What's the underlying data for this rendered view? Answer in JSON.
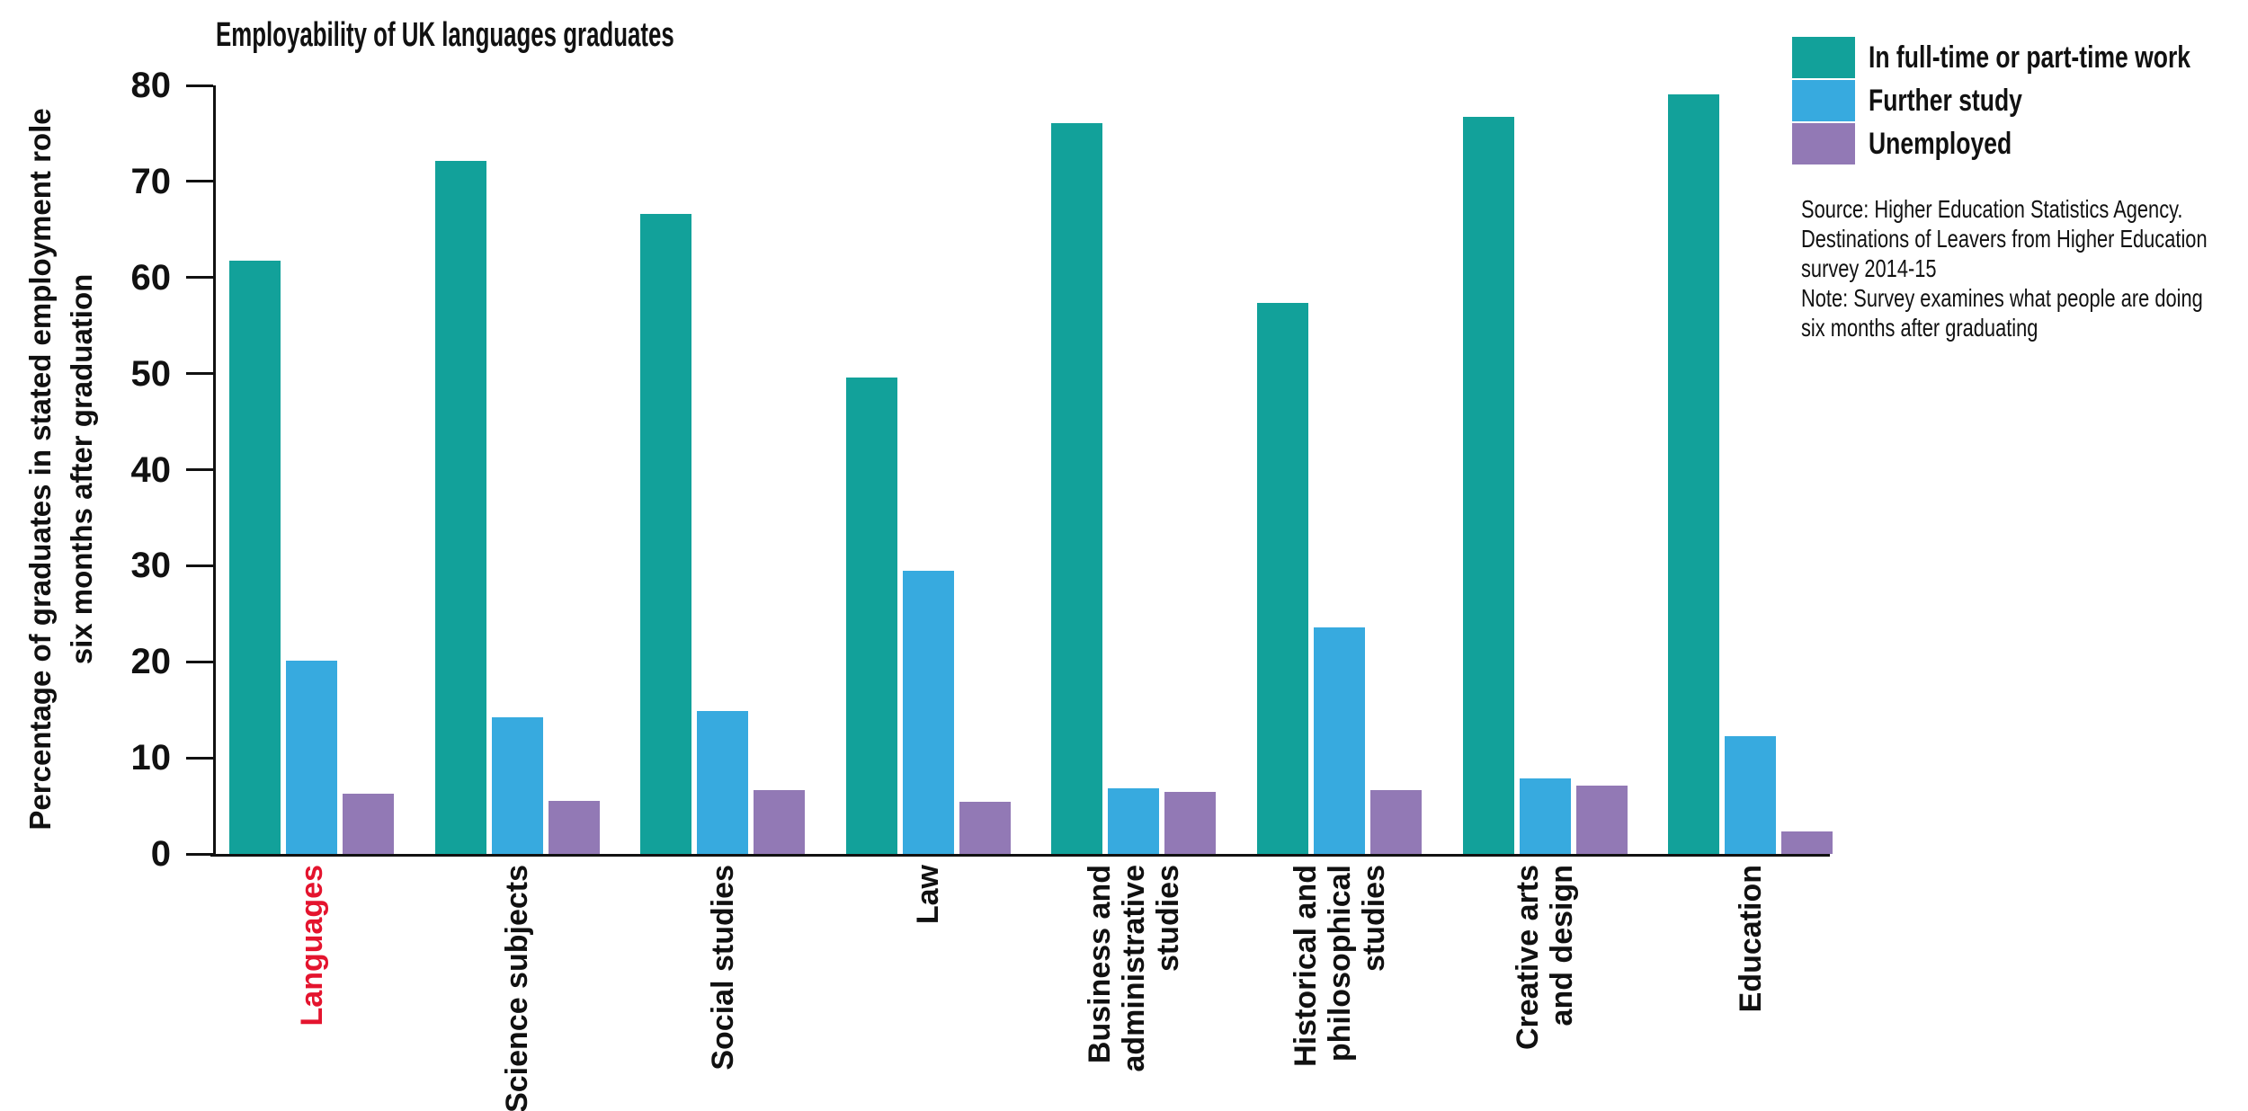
{
  "title": "Employability of UK languages graduates",
  "source_note": {
    "lines": [
      "Source: Higher Education Statistics Agency.",
      "Destinations of Leavers from Higher Education",
      "survey 2014-15",
      "Note: Survey examines what people are doing",
      "six months after graduating"
    ]
  },
  "chart_data": {
    "type": "bar",
    "title": "Employability of UK languages graduates",
    "ylabel_lines": [
      "Percentage of graduates in stated employment role",
      "six months after graduation"
    ],
    "xlabel": "",
    "ylim": [
      0,
      80
    ],
    "ytick_step": 10,
    "grid": false,
    "legend_position": "top-right",
    "axis_color": "#111111",
    "highlight_color": "#E4142E",
    "categories": [
      {
        "label_lines": [
          "Languages"
        ],
        "label_color": "#E4142E"
      },
      {
        "label_lines": [
          "Science subjects"
        ],
        "label_color": "#111111"
      },
      {
        "label_lines": [
          "Social studies"
        ],
        "label_color": "#111111"
      },
      {
        "label_lines": [
          "Law"
        ],
        "label_color": "#111111"
      },
      {
        "label_lines": [
          "Business and",
          "administrative",
          "studies"
        ],
        "label_color": "#111111"
      },
      {
        "label_lines": [
          "Historical and",
          "philosophical",
          "studies"
        ],
        "label_color": "#111111"
      },
      {
        "label_lines": [
          "Creative arts",
          "and design"
        ],
        "label_color": "#111111"
      },
      {
        "label_lines": [
          "Education"
        ],
        "label_color": "#111111"
      }
    ],
    "series": [
      {
        "name": "In full-time or part-time work",
        "color": "#12A19A",
        "values": [
          61.8,
          72.1,
          66.6,
          49.6,
          76.1,
          57.4,
          76.7,
          79.1
        ]
      },
      {
        "name": "Further study",
        "color": "#37AADF",
        "values": [
          20.1,
          14.2,
          14.9,
          29.5,
          6.8,
          23.6,
          7.9,
          12.3
        ]
      },
      {
        "name": "Unemployed",
        "color": "#9279B5",
        "values": [
          6.3,
          5.5,
          6.6,
          5.4,
          6.5,
          6.6,
          7.1,
          2.3
        ]
      }
    ]
  }
}
